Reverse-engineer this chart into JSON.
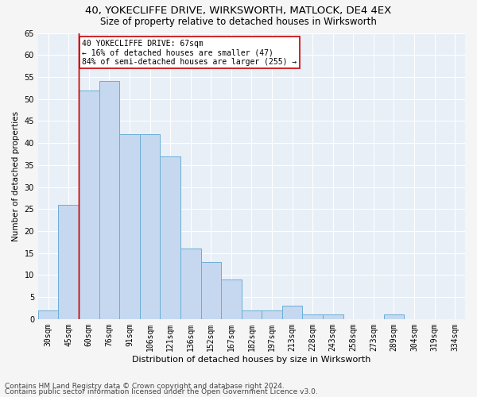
{
  "title1": "40, YOKECLIFFE DRIVE, WIRKSWORTH, MATLOCK, DE4 4EX",
  "title2": "Size of property relative to detached houses in Wirksworth",
  "xlabel": "Distribution of detached houses by size in Wirksworth",
  "ylabel": "Number of detached properties",
  "categories": [
    "30sqm",
    "45sqm",
    "60sqm",
    "76sqm",
    "91sqm",
    "106sqm",
    "121sqm",
    "136sqm",
    "152sqm",
    "167sqm",
    "182sqm",
    "197sqm",
    "213sqm",
    "228sqm",
    "243sqm",
    "258sqm",
    "273sqm",
    "289sqm",
    "304sqm",
    "319sqm",
    "334sqm"
  ],
  "values": [
    2,
    26,
    52,
    54,
    42,
    42,
    37,
    16,
    13,
    9,
    2,
    2,
    3,
    1,
    1,
    0,
    0,
    1,
    0,
    0,
    0
  ],
  "bar_color": "#c5d8f0",
  "bar_edge_color": "#6aaed6",
  "vline_color": "#cc0000",
  "vline_x_index": 2,
  "annotation_text": "40 YOKECLIFFE DRIVE: 67sqm\n← 16% of detached houses are smaller (47)\n84% of semi-detached houses are larger (255) →",
  "annotation_box_color": "#ffffff",
  "annotation_box_edge": "#cc0000",
  "ylim": [
    0,
    65
  ],
  "yticks": [
    0,
    5,
    10,
    15,
    20,
    25,
    30,
    35,
    40,
    45,
    50,
    55,
    60,
    65
  ],
  "bg_color": "#e8eff7",
  "grid_color": "#ffffff",
  "footer1": "Contains HM Land Registry data © Crown copyright and database right 2024.",
  "footer2": "Contains public sector information licensed under the Open Government Licence v3.0.",
  "title1_fontsize": 9.5,
  "title2_fontsize": 8.5,
  "xlabel_fontsize": 8,
  "ylabel_fontsize": 7.5,
  "tick_fontsize": 7,
  "annotation_fontsize": 7,
  "footer_fontsize": 6.5
}
